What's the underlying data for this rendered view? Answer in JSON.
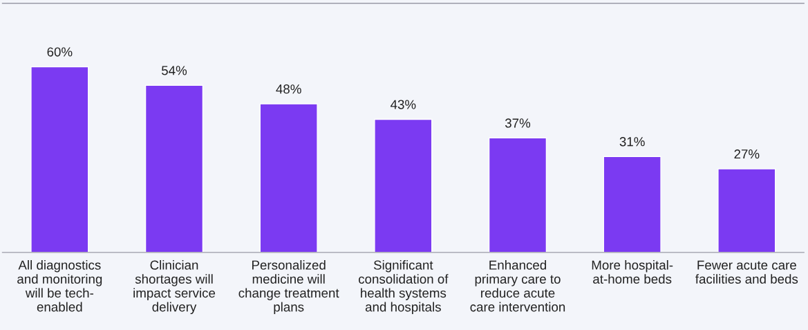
{
  "chart_data": {
    "type": "bar",
    "categories": [
      "All diagnostics\nand monitoring\nwill be tech-\nenabled",
      "Clinician\nshortages will\nimpact service\ndelivery",
      "Personalized\nmedicine will\nchange treatment\nplans",
      "Significant\nconsolidation of\nhealth systems\nand hospitals",
      "Enhanced\nprimary care to\nreduce acute\ncare intervention",
      "More hospital-\nat-home beds",
      "Fewer acute care\nfacilities and beds"
    ],
    "values": [
      60,
      54,
      48,
      43,
      37,
      31,
      27
    ],
    "value_labels": [
      "60%",
      "54%",
      "48%",
      "43%",
      "37%",
      "31%",
      "27%"
    ],
    "color": "#7b3af2",
    "ylim": [
      0,
      80.5
    ],
    "tick_labels": "x",
    "grid": false
  }
}
